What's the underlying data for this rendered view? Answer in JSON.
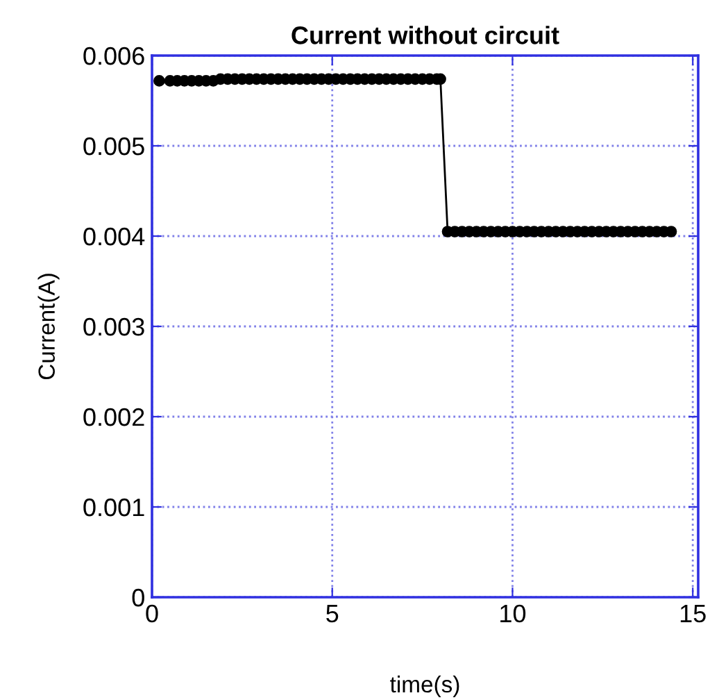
{
  "chart_data": {
    "type": "line",
    "title": "Current without circuit",
    "xlabel": "time(s)",
    "ylabel": "Current(A)",
    "x": [
      0.2,
      0.5,
      0.7,
      0.9,
      1.1,
      1.3,
      1.5,
      1.7,
      1.9,
      2.1,
      2.3,
      2.5,
      2.7,
      2.9,
      3.1,
      3.3,
      3.5,
      3.7,
      3.9,
      4.1,
      4.3,
      4.5,
      4.7,
      4.9,
      5.1,
      5.3,
      5.5,
      5.7,
      5.9,
      6.1,
      6.3,
      6.5,
      6.7,
      6.9,
      7.1,
      7.3,
      7.5,
      7.7,
      7.9,
      8.0,
      8.2,
      8.4,
      8.6,
      8.8,
      9.0,
      9.2,
      9.4,
      9.6,
      9.8,
      10.0,
      10.2,
      10.4,
      10.6,
      10.8,
      11.0,
      11.2,
      11.4,
      11.6,
      11.8,
      12.0,
      12.2,
      12.4,
      12.6,
      12.8,
      13.0,
      13.2,
      13.4,
      13.6,
      13.8,
      14.0,
      14.2,
      14.4
    ],
    "series": [
      {
        "color": "#000000",
        "values": [
          0.00572,
          0.00572,
          0.00572,
          0.00572,
          0.00572,
          0.00572,
          0.00572,
          0.00572,
          0.00574,
          0.00574,
          0.00574,
          0.00574,
          0.00574,
          0.00574,
          0.00574,
          0.00574,
          0.00574,
          0.00574,
          0.00574,
          0.00574,
          0.00574,
          0.00574,
          0.00574,
          0.00574,
          0.00574,
          0.00574,
          0.00574,
          0.00574,
          0.00574,
          0.00574,
          0.00574,
          0.00574,
          0.00574,
          0.00574,
          0.00574,
          0.00574,
          0.00574,
          0.00574,
          0.00574,
          0.00574,
          0.00405,
          0.00405,
          0.00405,
          0.00405,
          0.00405,
          0.00405,
          0.00405,
          0.00405,
          0.00405,
          0.00405,
          0.00405,
          0.00405,
          0.00405,
          0.00405,
          0.00405,
          0.00405,
          0.00405,
          0.00405,
          0.00405,
          0.00405,
          0.00405,
          0.00405,
          0.00405,
          0.00405,
          0.00405,
          0.00405,
          0.00405,
          0.00405,
          0.00405,
          0.00405,
          0.00405,
          0.00405
        ]
      }
    ],
    "xlim": [
      0,
      15.15
    ],
    "ylim": [
      0,
      0.006
    ],
    "xticks": [
      0,
      5,
      10,
      15
    ],
    "yticks": [
      0,
      0.001,
      0.002,
      0.003,
      0.004,
      0.005,
      0.006
    ],
    "grid": true,
    "marker": "circle",
    "line_style": "solid"
  }
}
